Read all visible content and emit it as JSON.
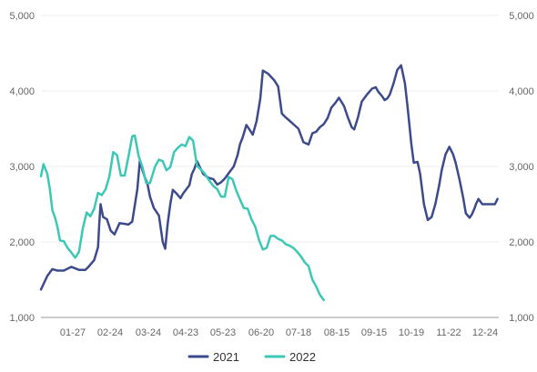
{
  "chart_data": {
    "type": "line",
    "title": "",
    "xlabel": "",
    "ylabel": "",
    "x_ticks": [
      "01-27",
      "02-24",
      "03-24",
      "04-23",
      "05-23",
      "06-20",
      "07-18",
      "08-15",
      "09-15",
      "10-19",
      "11-22",
      "12-24"
    ],
    "y_ticks": [
      "1,000",
      "2,000",
      "3,000",
      "4,000",
      "5,000"
    ],
    "y_ticks_right": [
      "1,000",
      "2,000",
      "3,000",
      "4,000",
      "5,000"
    ],
    "ylim": [
      1000,
      5000
    ],
    "x_range_days": [
      1,
      362
    ],
    "grid": "horizontal",
    "legend": "bottom-center",
    "colors": {
      "2021": "#3d4a8c",
      "2022": "#3cc8b4"
    },
    "series": [
      {
        "name": "2021",
        "x": [
          1,
          6,
          10,
          14,
          19,
          25,
          31,
          36,
          39,
          43,
          46,
          47,
          48,
          50,
          53,
          56,
          59,
          63,
          67,
          70,
          73,
          77,
          79,
          81,
          83,
          85,
          87,
          90,
          94,
          97,
          99,
          101,
          103,
          105,
          108,
          111,
          113,
          118,
          120,
          122,
          124,
          126,
          129,
          133,
          137,
          140,
          143,
          146,
          149,
          153,
          156,
          158,
          160,
          163,
          165,
          168,
          171,
          174,
          176,
          180,
          185,
          188,
          191,
          194,
          196,
          200,
          204,
          208,
          212,
          215,
          218,
          221,
          224,
          227,
          230,
          233,
          236,
          240,
          243,
          246,
          248,
          251,
          254,
          258,
          262,
          265,
          267,
          270,
          272,
          274,
          276,
          279,
          282,
          285,
          288,
          290,
          293,
          295,
          298,
          300,
          303,
          306,
          309,
          312,
          315,
          317,
          320,
          323,
          326,
          328,
          331,
          334,
          336,
          339,
          341,
          343,
          344,
          346,
          349,
          352,
          355,
          357,
          359,
          361
        ],
        "y": [
          1370,
          1550,
          1640,
          1620,
          1620,
          1670,
          1630,
          1630,
          1680,
          1760,
          1930,
          2250,
          2500,
          2330,
          2300,
          2150,
          2100,
          2250,
          2240,
          2230,
          2270,
          2700,
          3080,
          2950,
          2850,
          2770,
          2600,
          2450,
          2350,
          2000,
          1910,
          2250,
          2500,
          2690,
          2640,
          2580,
          2640,
          2750,
          2900,
          2970,
          3070,
          3000,
          2900,
          2850,
          2830,
          2760,
          2790,
          2840,
          2910,
          3000,
          3150,
          3300,
          3380,
          3550,
          3500,
          3420,
          3600,
          3900,
          4270,
          4230,
          4140,
          4060,
          3700,
          3650,
          3620,
          3560,
          3500,
          3320,
          3290,
          3440,
          3460,
          3520,
          3560,
          3640,
          3780,
          3840,
          3910,
          3800,
          3650,
          3520,
          3490,
          3650,
          3860,
          3950,
          4030,
          4050,
          3990,
          3930,
          3880,
          3900,
          3950,
          4100,
          4280,
          4340,
          4100,
          3800,
          3300,
          3050,
          3060,
          2900,
          2500,
          2290,
          2330,
          2500,
          2750,
          2950,
          3160,
          3260,
          3160,
          3050,
          2830,
          2580,
          2380,
          2320,
          2370,
          2450,
          2500,
          2570,
          2500,
          2500,
          2500,
          2500,
          2500,
          2500
        ],
        "y_note": ""
      },
      {
        "name": "2022",
        "x": [
          1,
          3,
          6,
          8,
          10,
          12,
          14,
          16,
          19,
          22,
          25,
          28,
          31,
          34,
          37,
          40,
          43,
          46,
          49,
          52,
          55,
          58,
          61,
          64,
          67,
          70,
          73,
          75,
          78,
          81,
          84,
          87,
          91,
          94,
          97,
          100,
          103,
          106,
          109,
          112,
          115,
          118,
          121,
          124,
          127,
          130,
          133,
          137,
          140,
          143,
          146,
          149,
          152,
          155,
          158,
          161,
          164,
          167,
          170,
          173,
          176,
          179,
          182,
          185,
          188,
          191,
          194,
          197,
          200,
          203,
          206,
          209,
          212,
          215,
          218,
          221,
          224,
          227,
          230,
          233,
          236,
          239,
          242,
          245,
          248,
          250,
          252
        ],
        "y": [
          2870,
          3030,
          2900,
          2700,
          2420,
          2330,
          2200,
          2020,
          2010,
          1920,
          1860,
          1790,
          1870,
          2180,
          2390,
          2340,
          2440,
          2650,
          2620,
          2700,
          2870,
          3190,
          3150,
          2880,
          2880,
          3130,
          3400,
          3410,
          3140,
          2990,
          2780,
          2780,
          3000,
          3090,
          3070,
          2950,
          2990,
          3190,
          3250,
          3290,
          3270,
          3390,
          3340,
          3010,
          2960,
          2910,
          2830,
          2740,
          2700,
          2600,
          2600,
          2860,
          2830,
          2680,
          2560,
          2450,
          2440,
          2300,
          2200,
          2020,
          1900,
          1920,
          2080,
          2080,
          2040,
          2020,
          1970,
          1950,
          1920,
          1870,
          1810,
          1730,
          1680,
          1500,
          1410,
          1300,
          1230,
          1230,
          1230,
          1230,
          1230,
          1230,
          1230,
          1230,
          1230,
          1230,
          1230
        ],
        "y_note": ""
      }
    ]
  }
}
